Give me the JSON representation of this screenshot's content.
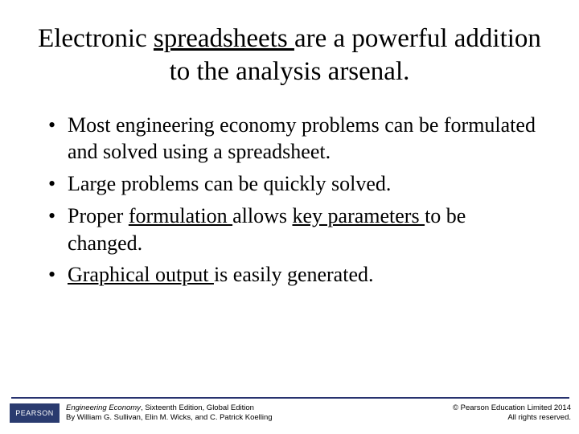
{
  "title": {
    "pre": "Electronic ",
    "u1": "spreadsheets ",
    "mid": "are a powerful addition to the analysis arsenal."
  },
  "bullets": {
    "b1": "Most engineering economy problems can be formulated and solved using a spreadsheet.",
    "b2": "Large problems can be quickly solved.",
    "b3": {
      "a": "Proper ",
      "u1": "formulation ",
      "b": "allows ",
      "u2": "key parameters ",
      "c": "to be changed."
    },
    "b4": {
      "u1": "Graphical output ",
      "a": "is easily generated."
    }
  },
  "footer": {
    "logo": "PEARSON",
    "book_title": "Engineering Economy",
    "edition": ", Sixteenth Edition, Global Edition",
    "authors": "By William G. Sullivan, Elin M. Wicks, and C. Patrick Koelling",
    "copyright": "© Pearson Education Limited 2014",
    "rights": "All rights reserved."
  },
  "colors": {
    "rule": "#27326f",
    "logo_bg": "#2a3b6f",
    "text": "#000000",
    "bg": "#ffffff"
  }
}
